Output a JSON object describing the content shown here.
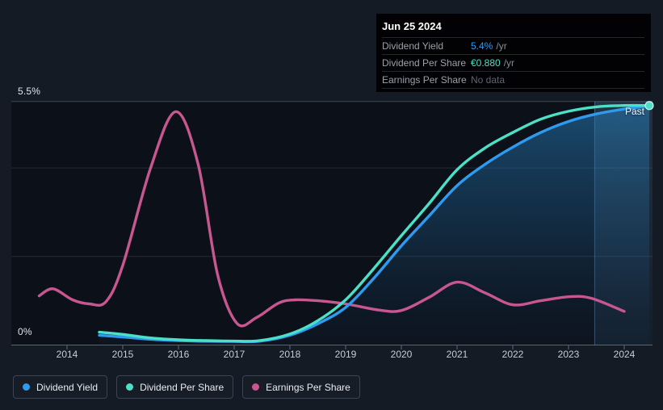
{
  "tooltip": {
    "date": "Jun 25 2024",
    "rows": [
      {
        "label": "Dividend Yield",
        "value": "5.4%",
        "suffix": "/yr",
        "value_color": "#2e9bf0"
      },
      {
        "label": "Dividend Per Share",
        "value": "€0.880",
        "suffix": "/yr",
        "value_color": "#4ce0c6"
      },
      {
        "label": "Earnings Per Share",
        "value": "No data",
        "suffix": "",
        "value_color": "#5d6470"
      }
    ]
  },
  "axis": {
    "y_top_label": "5.5%",
    "y_bottom_label": "0%",
    "x_ticks": [
      "2014",
      "2015",
      "2016",
      "2017",
      "2018",
      "2019",
      "2020",
      "2021",
      "2022",
      "2023",
      "2024"
    ]
  },
  "past_label": "Past",
  "legend": [
    {
      "label": "Dividend Yield",
      "color": "#2e9bf0"
    },
    {
      "label": "Dividend Per Share",
      "color": "#4ce0c6"
    },
    {
      "label": "Earnings Per Share",
      "color": "#c75691"
    }
  ],
  "colors": {
    "background": "#151b25",
    "plot_background": "#0c1119",
    "tooltip_background": "#020204",
    "gridline": "#242b37",
    "top_gridline": "#3e4655",
    "axis_line": "#5c6575",
    "tick": "#4b5462",
    "past_divider": "#7fb0d8"
  },
  "chart_data": {
    "type": "line",
    "title": "Dividend history and yield",
    "x_range": [
      2013.4,
      2024.55
    ],
    "x_axis": {
      "years": [
        2014,
        2015,
        2016,
        2017,
        2018,
        2019,
        2020,
        2021,
        2022,
        2023,
        2024
      ]
    },
    "y_axis": {
      "unit": "%",
      "min": 0,
      "max": 5.5,
      "tick_values": [
        0,
        2,
        4,
        5.5
      ],
      "top_label": "5.5%",
      "bottom_label": "0%",
      "grid": true
    },
    "legend_position": "bottom-left",
    "past_divider_x": 2023.47,
    "annotations": [
      {
        "text": "Past",
        "x": 2024.3,
        "y": 5.3
      }
    ],
    "series": [
      {
        "name": "Dividend Yield",
        "color": "#2e9bf0",
        "style": "line-with-area",
        "end_marker": false,
        "points": [
          [
            2014.58,
            0.22
          ],
          [
            2015,
            0.18
          ],
          [
            2015.5,
            0.13
          ],
          [
            2016,
            0.1
          ],
          [
            2016.5,
            0.085
          ],
          [
            2017,
            0.08
          ],
          [
            2017.45,
            0.085
          ],
          [
            2018,
            0.22
          ],
          [
            2018.5,
            0.48
          ],
          [
            2019,
            0.85
          ],
          [
            2019.5,
            1.5
          ],
          [
            2020,
            2.24
          ],
          [
            2020.5,
            2.92
          ],
          [
            2021,
            3.6
          ],
          [
            2021.5,
            4.08
          ],
          [
            2022,
            4.47
          ],
          [
            2022.5,
            4.8
          ],
          [
            2023,
            5.05
          ],
          [
            2023.5,
            5.22
          ],
          [
            2024,
            5.33
          ],
          [
            2024.45,
            5.4
          ]
        ]
      },
      {
        "name": "Dividend Per Share",
        "color": "#4ce0c6",
        "style": "line",
        "end_marker": true,
        "points": [
          [
            2014.58,
            0.29
          ],
          [
            2015,
            0.24
          ],
          [
            2015.5,
            0.16
          ],
          [
            2016,
            0.12
          ],
          [
            2016.5,
            0.1
          ],
          [
            2017,
            0.09
          ],
          [
            2017.45,
            0.1
          ],
          [
            2018,
            0.25
          ],
          [
            2018.5,
            0.55
          ],
          [
            2019,
            1.02
          ],
          [
            2019.5,
            1.72
          ],
          [
            2020,
            2.47
          ],
          [
            2020.5,
            3.2
          ],
          [
            2021,
            3.96
          ],
          [
            2021.5,
            4.45
          ],
          [
            2022,
            4.8
          ],
          [
            2022.5,
            5.1
          ],
          [
            2023,
            5.28
          ],
          [
            2023.5,
            5.38
          ],
          [
            2024,
            5.41
          ],
          [
            2024.45,
            5.41
          ]
        ]
      },
      {
        "name": "Earnings Per Share",
        "color": "#c75691",
        "style": "line",
        "end_marker": false,
        "points": [
          [
            2013.5,
            1.11
          ],
          [
            2013.75,
            1.27
          ],
          [
            2014.1,
            1.02
          ],
          [
            2014.4,
            0.93
          ],
          [
            2014.7,
            0.98
          ],
          [
            2015,
            1.8
          ],
          [
            2015.5,
            4.0
          ],
          [
            2015.95,
            5.27
          ],
          [
            2016.35,
            4.1
          ],
          [
            2016.7,
            1.6
          ],
          [
            2017.05,
            0.49
          ],
          [
            2017.4,
            0.62
          ],
          [
            2017.8,
            0.95
          ],
          [
            2018.1,
            1.02
          ],
          [
            2018.5,
            1.0
          ],
          [
            2019,
            0.93
          ],
          [
            2019.6,
            0.79
          ],
          [
            2020,
            0.78
          ],
          [
            2020.5,
            1.08
          ],
          [
            2021,
            1.42
          ],
          [
            2021.5,
            1.18
          ],
          [
            2022,
            0.91
          ],
          [
            2022.5,
            1.0
          ],
          [
            2023,
            1.09
          ],
          [
            2023.4,
            1.06
          ],
          [
            2024,
            0.76
          ]
        ]
      }
    ]
  }
}
